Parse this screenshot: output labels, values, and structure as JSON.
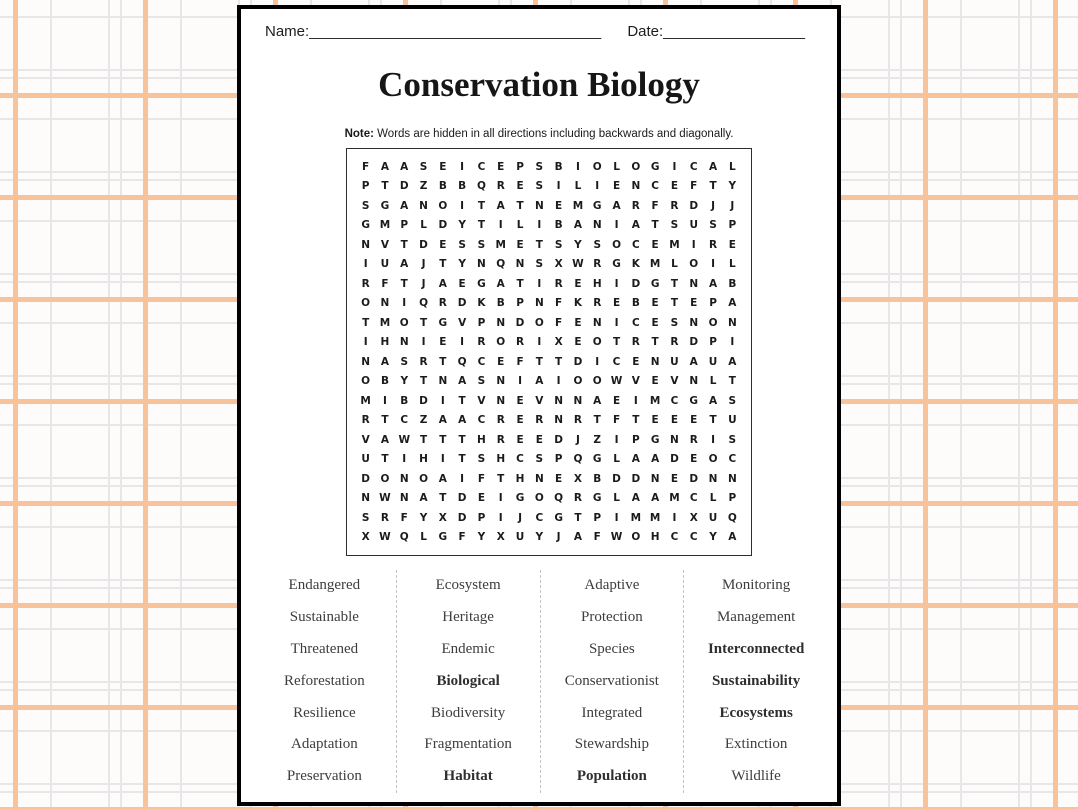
{
  "header": {
    "name_label": "Name:",
    "name_line": "___________________________________",
    "date_label": "Date:",
    "date_line": "_________________"
  },
  "title": "Conservation Biology",
  "note": {
    "label": "Note:",
    "text": " Words are hidden in all directions including backwards and diagonally."
  },
  "puzzle_grid": {
    "rows": 20,
    "cols": 20,
    "letters": [
      "FAASEICEPSBIOLOGICAL",
      "PTDZBBQRESILIENCEFTY",
      "SGANOITATNEMGARFRDJJ",
      "GMPLDYTILIBANIATSUSP",
      "NVTDESSMETSYSOCEMIRE",
      "IUAJTYNQNSXWRGKMLOIL",
      "RFTJAEGATIREHIDGTNAB",
      "ONIQRDKBPNFKREBETEPA",
      "TMOTGVPNDOFENICESNON",
      "IHNIEIRORIXEOTRTRDPI",
      "NASRTQCEFTTDICENUAUA",
      "OBYTNASNIAIOOWVEVNLT",
      "MIBDITVNEVNNAEIMCGAS",
      "RTCZAACRERNRTFTEEETU",
      "VAWTTTHREEDJZIPGNRIS",
      "UTIHITSHCSPQGLAADEOC",
      "DONOAIFTHNEXBDDNEDNN",
      "NWNATDEIGOQRGLAAMCLP",
      "SRFYXDPIJCGTPIMMIXUQ",
      "XWQLGFYXUYJAFWOHCCYA"
    ]
  },
  "word_list": {
    "columns": [
      [
        "Endangered",
        "Sustainable",
        "Threatened",
        "Reforestation",
        "Resilience",
        "Adaptation",
        "Preservation"
      ],
      [
        "Ecosystem",
        "Heritage",
        "Endemic",
        "Biological",
        "Biodiversity",
        "Fragmentation",
        "Habitat"
      ],
      [
        "Adaptive",
        "Protection",
        "Species",
        "Conservationist",
        "Integrated",
        "Stewardship",
        "Population"
      ],
      [
        "Monitoring",
        "Management",
        "Interconnected",
        "Sustainability",
        "Ecosystems",
        "Extinction",
        "Wildlife"
      ]
    ],
    "bold_words": [
      "Biological",
      "Interconnected",
      "Sustainability",
      "Ecosystems",
      "Habitat",
      "Population"
    ]
  },
  "colors": {
    "plaid_orange": "#f8c39b",
    "plaid_gray": "#e8e6e8",
    "page_border": "#000000",
    "word_text": "#3d3d3d",
    "divider_gray": "#c6c4c6"
  }
}
